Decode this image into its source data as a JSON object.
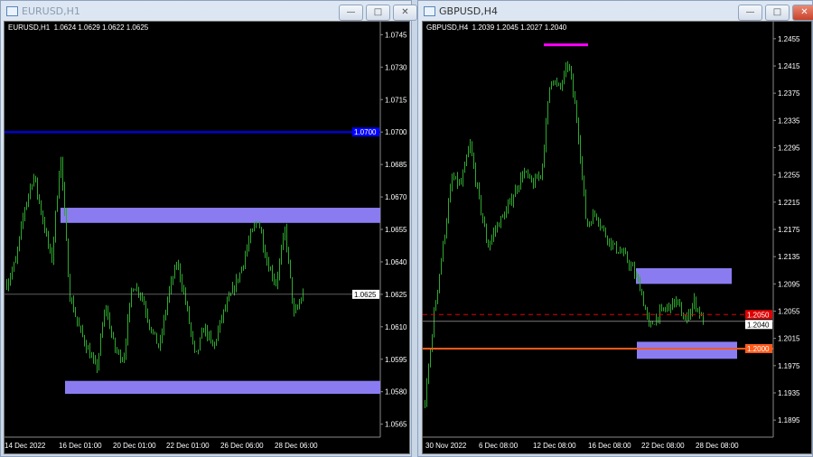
{
  "windows": [
    {
      "title": "EURUSD,H1",
      "header": "EURUSD,H1  1.0624 1.0629 1.0622 1.0625",
      "price_labels": [
        "1.0745",
        "1.0730",
        "1.0715",
        "1.0700",
        "1.0685",
        "1.0670",
        "1.0655",
        "1.0640",
        "1.0625",
        "1.0610",
        "1.0595",
        "1.0580",
        "1.0565"
      ],
      "time_labels": [
        "14 Dec 2022",
        "16 Dec 01:00",
        "20 Dec 01:00",
        "22 Dec 01:00",
        "26 Dec 06:00",
        "28 Dec 06:00"
      ],
      "price_range": [
        1.0559,
        1.0751
      ],
      "current_price": "1.0625",
      "current_price_value": 1.0625,
      "hline": {
        "price": 1.07,
        "label": "1.0700",
        "color": "#0000ff"
      },
      "zones": [
        {
          "top": 1.0665,
          "bottom": 1.0658,
          "color": "#8a7cf0"
        },
        {
          "top": 1.0585,
          "bottom": 1.0579,
          "color": "#8a7cf0"
        }
      ],
      "path": [
        1.063,
        1.064,
        1.0665,
        1.068,
        1.066,
        1.064,
        1.069,
        1.0625,
        1.061,
        1.06,
        1.059,
        1.062,
        1.06,
        1.0595,
        1.063,
        1.0625,
        1.061,
        1.06,
        1.0625,
        1.064,
        1.062,
        1.0595,
        1.061,
        1.06,
        1.0615,
        1.0625,
        1.0635,
        1.065,
        1.066,
        1.064,
        1.063,
        1.0655,
        1.0615,
        1.0625
      ]
    },
    {
      "title": "GBPUSD,H4",
      "header": "GBPUSD,H4  1.2039 1.2045 1.2027 1.2040",
      "price_labels": [
        "1.2455",
        "1.2415",
        "1.2375",
        "1.2335",
        "1.2295",
        "1.2255",
        "1.2215",
        "1.2175",
        "1.2135",
        "1.2095",
        "1.2055",
        "1.2015",
        "1.1975",
        "1.1935",
        "1.1895"
      ],
      "time_labels": [
        "30 Nov 2022",
        "6 Dec 08:00",
        "12 Dec 08:00",
        "16 Dec 08:00",
        "22 Dec 08:00",
        "28 Dec 08:00"
      ],
      "price_range": [
        1.187,
        1.248
      ],
      "current_price": "1.2040",
      "current_price_value": 1.204,
      "dashed_line": {
        "price": 1.205,
        "label": "1.2050",
        "color": "#e00000"
      },
      "hline": {
        "price": 1.2,
        "label": "1.2000",
        "color": "#ff5a1a"
      },
      "marker": {
        "price": 1.2446,
        "color": "#ff00ff"
      },
      "zones": [
        {
          "top": 1.2118,
          "bottom": 1.2095,
          "color": "#8a7cf0"
        },
        {
          "top": 1.201,
          "bottom": 1.1985,
          "color": "#8a7cf0"
        }
      ],
      "path": [
        1.192,
        1.205,
        1.215,
        1.225,
        1.224,
        1.23,
        1.222,
        1.215,
        1.218,
        1.22,
        1.223,
        1.226,
        1.224,
        1.226,
        1.24,
        1.238,
        1.242,
        1.233,
        1.218,
        1.22,
        1.217,
        1.215,
        1.214,
        1.212,
        1.209,
        1.203,
        1.205,
        1.206,
        1.207,
        1.204,
        1.207,
        1.204
      ]
    }
  ],
  "colors": {
    "candle": "#2ea82e",
    "background": "#000000"
  }
}
